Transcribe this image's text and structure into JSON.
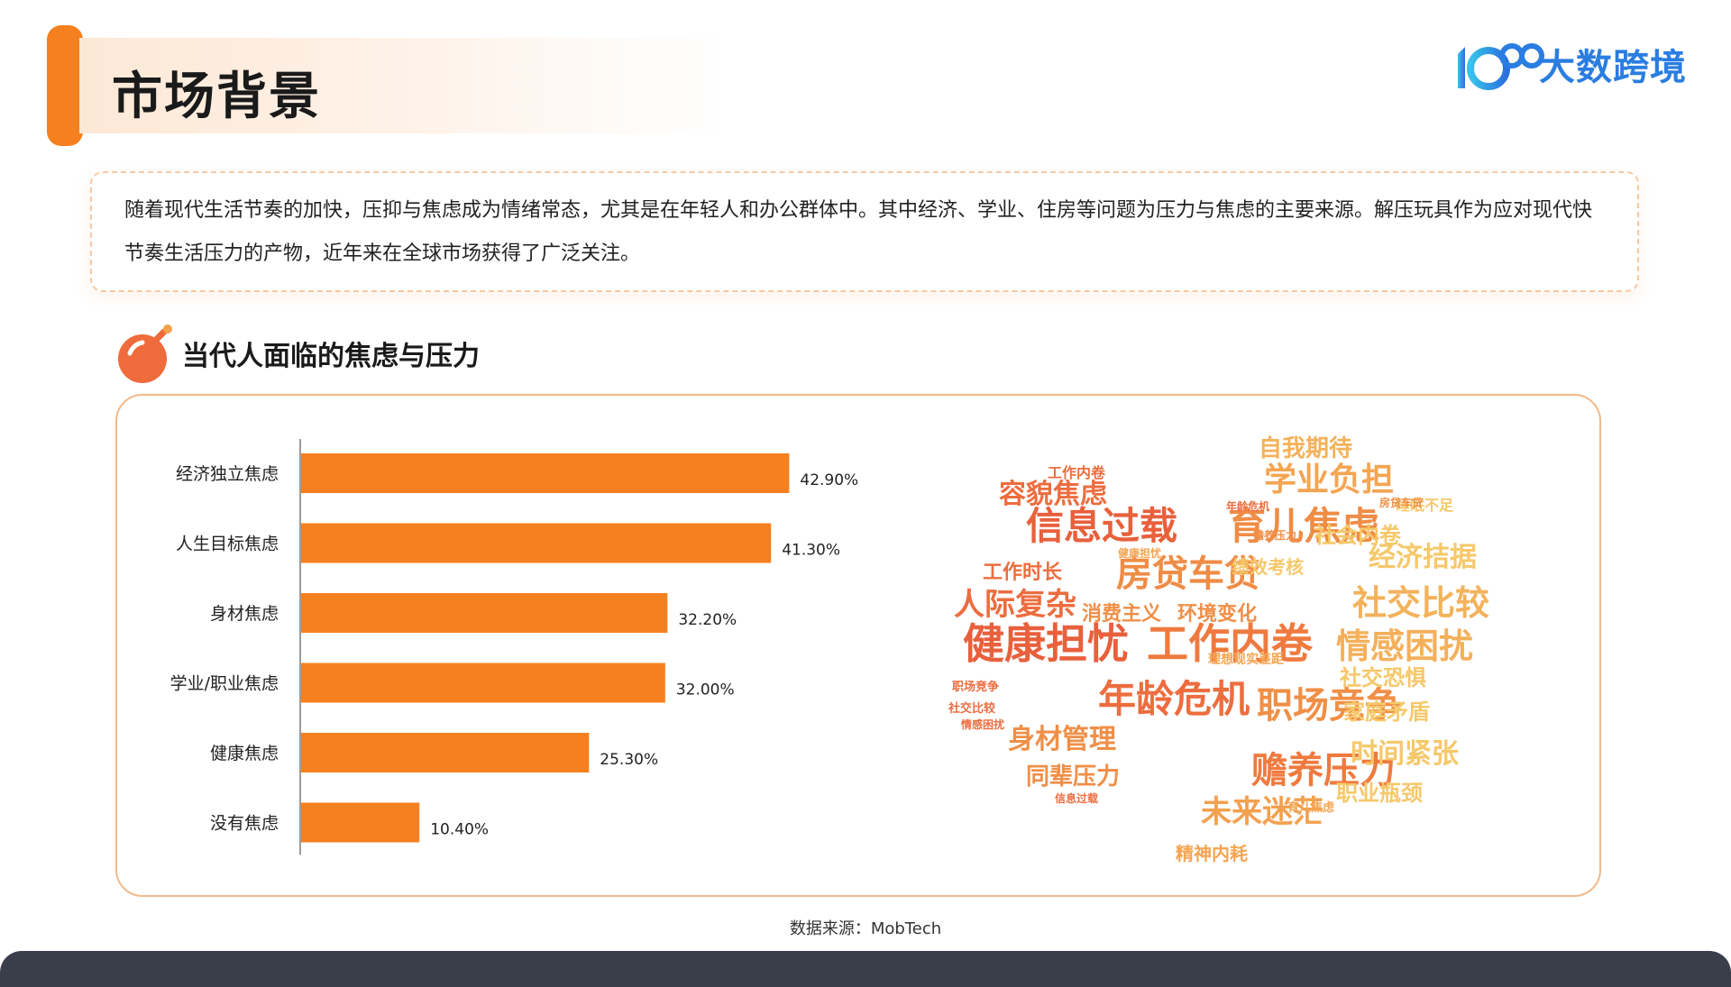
{
  "header": {
    "title": "市场背景",
    "logo_text": "大数跨境",
    "logo_mark": "100"
  },
  "intro": {
    "text": "随着现代生活节奏的加快，压抑与焦虑成为情绪常态，尤其是在年轻人和办公群体中。其中经济、学业、住房等问题为压力与焦虑的主要来源。解压玩具作为应对现代快节奏生活压力的产物，近年来在全球市场获得了广泛关注。"
  },
  "section": {
    "title": "当代人面临的焦虑与压力"
  },
  "chart_data": {
    "type": "bar",
    "orientation": "horizontal",
    "categories": [
      "经济独立焦虑",
      "人生目标焦虑",
      "身材焦虑",
      "学业/职业焦虑",
      "健康焦虑",
      "没有焦虑"
    ],
    "values": [
      42.9,
      41.3,
      32.2,
      32.0,
      25.3,
      10.4
    ],
    "value_labels": [
      "42.90%",
      "41.30%",
      "32.20%",
      "32.00%",
      "25.30%",
      "10.40%"
    ],
    "unit": "%",
    "xlim": [
      0,
      50
    ],
    "grid": false,
    "bar_color": "#f5801f"
  },
  "wordcloud": {
    "words": [
      {
        "text": "健康担忧",
        "size": 46,
        "color": "#e8603c"
      },
      {
        "text": "工作内卷",
        "size": 46,
        "color": "#ef7a3f"
      },
      {
        "text": "信息过载",
        "size": 42,
        "color": "#e8603c"
      },
      {
        "text": "育儿焦虑",
        "size": 42,
        "color": "#ef8c45"
      },
      {
        "text": "房贷车贷",
        "size": 40,
        "color": "#ef8c45"
      },
      {
        "text": "年龄危机",
        "size": 42,
        "color": "#ec6d3f"
      },
      {
        "text": "职场竞争",
        "size": 40,
        "color": "#f08f47"
      },
      {
        "text": "赡养压力",
        "size": 40,
        "color": "#ef7a3f"
      },
      {
        "text": "社交比较",
        "size": 38,
        "color": "#f3b25b"
      },
      {
        "text": "情感困扰",
        "size": 38,
        "color": "#f4b05a"
      },
      {
        "text": "学业负担",
        "size": 36,
        "color": "#f4a552"
      },
      {
        "text": "人际复杂",
        "size": 34,
        "color": "#ec6d3f"
      },
      {
        "text": "容貌焦虑",
        "size": 30,
        "color": "#ec6d3f"
      },
      {
        "text": "身材管理",
        "size": 30,
        "color": "#f08f47"
      },
      {
        "text": "未来迷茫",
        "size": 34,
        "color": "#f3a04f"
      },
      {
        "text": "经济拮据",
        "size": 30,
        "color": "#f6c86a"
      },
      {
        "text": "时间紧张",
        "size": 30,
        "color": "#f6c86a"
      },
      {
        "text": "自我期待",
        "size": 26,
        "color": "#f3b25b"
      },
      {
        "text": "同辈压力",
        "size": 26,
        "color": "#f08f47"
      },
      {
        "text": "家庭矛盾",
        "size": 24,
        "color": "#f6c86a"
      },
      {
        "text": "职业瓶颈",
        "size": 24,
        "color": "#f6c86a"
      },
      {
        "text": "社交恐惧",
        "size": 24,
        "color": "#f6c86a"
      },
      {
        "text": "社会内卷",
        "size": 24,
        "color": "#f6c86a"
      },
      {
        "text": "工作时长",
        "size": 22,
        "color": "#ec6d3f"
      },
      {
        "text": "消费主义",
        "size": 22,
        "color": "#f08f47"
      },
      {
        "text": "环境变化",
        "size": 22,
        "color": "#f08f47"
      },
      {
        "text": "绩效考核",
        "size": 20,
        "color": "#f6c86a"
      },
      {
        "text": "精神内耗",
        "size": 20,
        "color": "#f4a552"
      },
      {
        "text": "睡眠不足",
        "size": 16,
        "color": "#f6c86a"
      },
      {
        "text": "工作内卷",
        "size": 16,
        "color": "#ec6d3f"
      },
      {
        "text": "理想现实差距",
        "size": 14,
        "color": "#f4a552"
      },
      {
        "text": "职场竞争",
        "size": 13,
        "color": "#ec6d3f"
      },
      {
        "text": "社交比较",
        "size": 13,
        "color": "#ec6d3f"
      },
      {
        "text": "情感困扰",
        "size": 12,
        "color": "#ec6d3f"
      },
      {
        "text": "育儿焦虑",
        "size": 13,
        "color": "#f4a552"
      },
      {
        "text": "健康担忧",
        "size": 12,
        "color": "#f4a552"
      },
      {
        "text": "信息过载",
        "size": 12,
        "color": "#ec6d3f"
      },
      {
        "text": "房贷车贷",
        "size": 12,
        "color": "#f08f47"
      },
      {
        "text": "年龄危机",
        "size": 12,
        "color": "#ec6d3f"
      },
      {
        "text": "赡养压力",
        "size": 12,
        "color": "#f08f47"
      }
    ]
  },
  "footer": {
    "source": "数据来源：MobTech"
  }
}
